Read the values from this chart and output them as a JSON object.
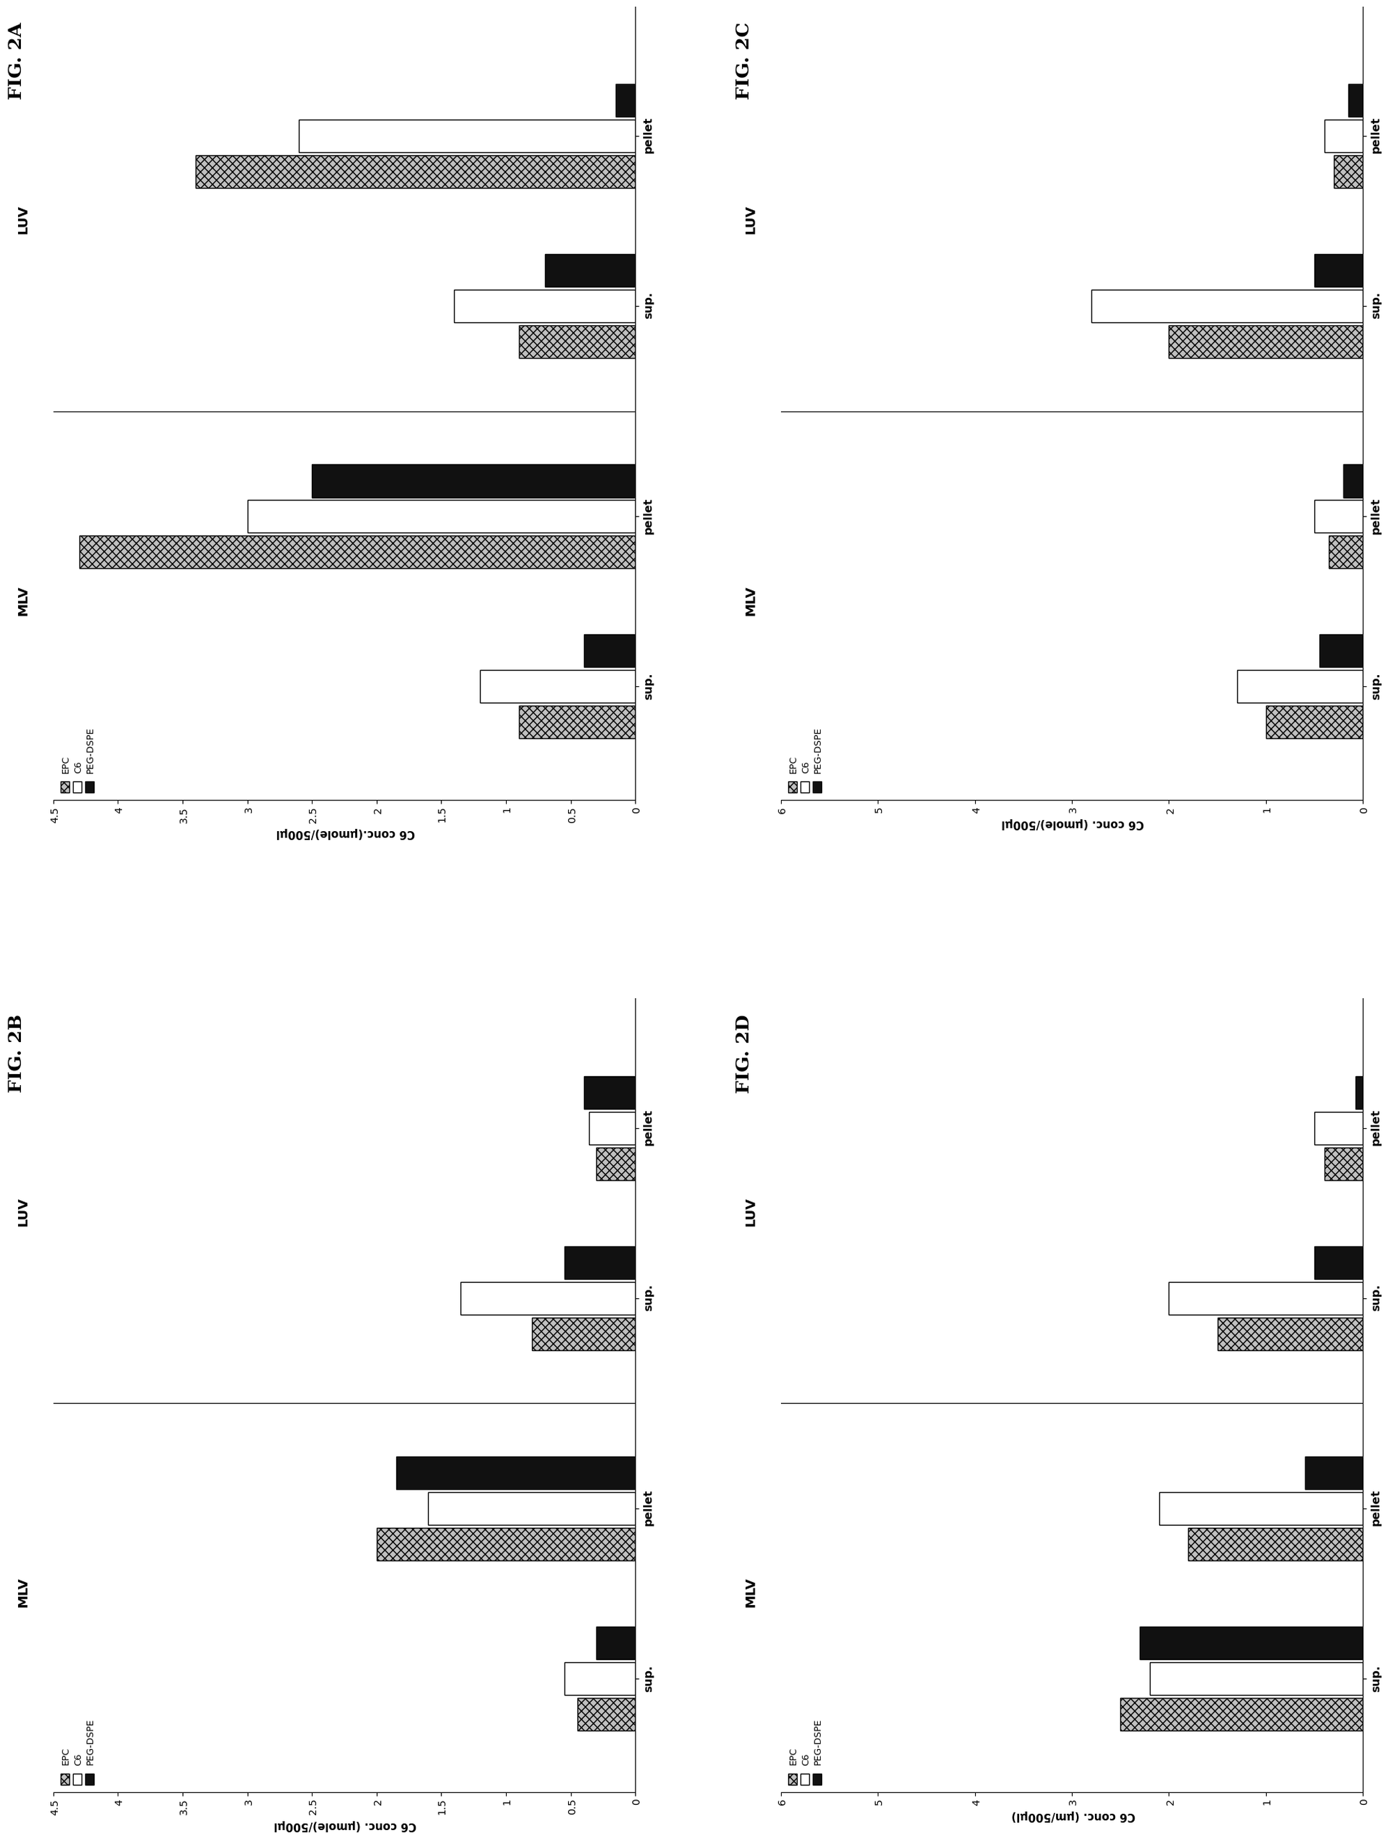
{
  "panels": [
    {
      "label": "FIG. 2B",
      "data_key": "figB",
      "ylim": 4.5,
      "yticks": [
        0,
        0.5,
        1.0,
        1.5,
        2.0,
        2.5,
        3.0,
        3.5,
        4.0,
        4.5
      ],
      "ylabel": "C6 conc. (μmole)/500μl"
    },
    {
      "label": "FIG. 2D",
      "data_key": "figD",
      "ylim": 6.0,
      "yticks": [
        0,
        1,
        2,
        3,
        4,
        5,
        6
      ],
      "ylabel": "C6 conc. (μm/500μl)"
    },
    {
      "label": "FIG. 2A",
      "data_key": "figA",
      "ylim": 4.5,
      "yticks": [
        0,
        0.5,
        1.0,
        1.5,
        2.0,
        2.5,
        3.0,
        3.5,
        4.0,
        4.5
      ],
      "ylabel": "C6 conc.(μmole)/500μl"
    },
    {
      "label": "FIG. 2C",
      "data_key": "figC",
      "ylim": 6.0,
      "yticks": [
        0,
        1,
        2,
        3,
        4,
        5,
        6
      ],
      "ylabel": "C6 conc. (μmole)/500μl"
    }
  ],
  "figB": {
    "MLV_sup": [
      0.45,
      0.55,
      0.3
    ],
    "MLV_pellet": [
      2.0,
      1.6,
      1.85
    ],
    "LUV_sup": [
      0.8,
      1.35,
      0.55
    ],
    "LUV_pellet": [
      0.3,
      0.36,
      0.4
    ]
  },
  "figD": {
    "MLV_sup": [
      2.5,
      2.2,
      2.3
    ],
    "MLV_pellet": [
      1.8,
      2.1,
      0.6
    ],
    "LUV_sup": [
      1.5,
      2.0,
      0.5
    ],
    "LUV_pellet": [
      0.4,
      0.5,
      0.08
    ]
  },
  "figA": {
    "MLV_sup": [
      0.9,
      1.2,
      0.4
    ],
    "MLV_pellet": [
      4.3,
      3.0,
      2.5
    ],
    "LUV_sup": [
      0.9,
      1.4,
      0.7
    ],
    "LUV_pellet": [
      3.4,
      2.6,
      0.15
    ]
  },
  "figC": {
    "MLV_sup": [
      1.0,
      1.3,
      0.45
    ],
    "MLV_pellet": [
      0.35,
      0.5,
      0.2
    ],
    "LUV_sup": [
      2.0,
      2.8,
      0.5
    ],
    "LUV_pellet": [
      0.3,
      0.4,
      0.15
    ]
  },
  "legend_labels": [
    "EPC",
    "C6",
    "PEG-DSPE"
  ],
  "bar_colors": [
    "#c0c0c0",
    "#ffffff",
    "#111111"
  ],
  "bar_hatches": [
    "xxx",
    "",
    ""
  ],
  "group_keys": [
    "MLV_sup",
    "MLV_pellet",
    "LUV_sup",
    "LUV_pellet"
  ],
  "group_labels": [
    "sup.",
    "pellet",
    "sup.",
    "pellet"
  ]
}
